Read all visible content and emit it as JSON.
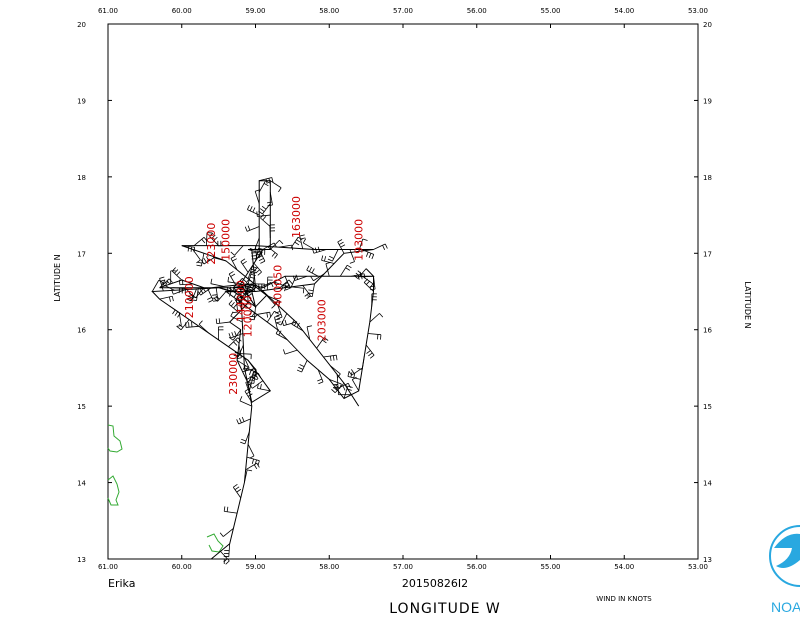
{
  "map": {
    "lon_range": [
      61.0,
      53.0
    ],
    "lat_range": [
      13,
      20
    ],
    "lon_ticks": [
      "61.00",
      "60.00",
      "59.00",
      "58.00",
      "57.00",
      "56.00",
      "55.00",
      "54.00",
      "53.00"
    ],
    "lat_ticks": [
      "20",
      "19",
      "18",
      "17",
      "16",
      "15",
      "14",
      "13"
    ],
    "storm_name": "Erika",
    "datetime": "20150826I2",
    "xlabel": "LONGITUDE   W",
    "ylabel_left": "LATITUDE   N",
    "ylabel_right": "LATITUDE   N",
    "wind_units": "WIND IN KNOTS",
    "logo_text": "NOAA",
    "colors": {
      "frame": "#000000",
      "track": "#000000",
      "labels": "#cc0000",
      "coast": "#33aa33",
      "logo": "#29a8e0"
    }
  },
  "flight_track": [
    [
      59.6,
      13.0
    ],
    [
      59.35,
      13.2
    ],
    [
      59.25,
      13.6
    ],
    [
      59.15,
      14.0
    ],
    [
      59.1,
      14.5
    ],
    [
      59.05,
      15.0
    ],
    [
      59.1,
      15.3
    ],
    [
      59.25,
      15.6
    ],
    [
      59.2,
      16.0
    ],
    [
      59.35,
      16.1
    ],
    [
      59.1,
      16.35
    ],
    [
      59.3,
      16.55
    ],
    [
      59.05,
      16.6
    ],
    [
      58.85,
      16.45
    ],
    [
      59.0,
      16.3
    ],
    [
      59.2,
      16.6
    ],
    [
      58.9,
      17.05
    ],
    [
      59.1,
      17.05
    ],
    [
      58.95,
      17.05
    ],
    [
      58.95,
      17.95
    ],
    [
      58.8,
      17.95
    ],
    [
      58.8,
      17.05
    ],
    [
      59.05,
      17.05
    ],
    [
      59.0,
      16.55
    ],
    [
      59.05,
      16.5
    ],
    [
      59.0,
      16.3
    ],
    [
      59.3,
      16.5
    ],
    [
      59.5,
      16.55
    ],
    [
      60.4,
      16.5
    ],
    [
      60.3,
      16.4
    ],
    [
      59.1,
      15.6
    ],
    [
      58.8,
      15.2
    ],
    [
      59.05,
      15.05
    ],
    [
      59.15,
      15.5
    ],
    [
      59.2,
      16.55
    ],
    [
      59.7,
      16.55
    ],
    [
      60.0,
      16.65
    ],
    [
      60.3,
      16.55
    ],
    [
      59.6,
      16.55
    ],
    [
      59.1,
      16.6
    ],
    [
      58.9,
      16.55
    ],
    [
      58.6,
      16.7
    ],
    [
      57.4,
      16.7
    ],
    [
      57.5,
      16.8
    ],
    [
      57.4,
      16.7
    ],
    [
      57.4,
      16.5
    ],
    [
      57.45,
      16.1
    ],
    [
      57.5,
      15.8
    ],
    [
      57.6,
      15.2
    ],
    [
      57.8,
      15.1
    ],
    [
      58.0,
      15.35
    ],
    [
      58.3,
      15.6
    ],
    [
      58.7,
      16.0
    ],
    [
      59.4,
      16.5
    ],
    [
      59.0,
      16.5
    ],
    [
      58.2,
      16.6
    ],
    [
      57.8,
      17.0
    ],
    [
      57.4,
      17.05
    ],
    [
      58.2,
      17.05
    ],
    [
      59.0,
      17.1
    ],
    [
      60.0,
      17.1
    ],
    [
      59.4,
      16.9
    ],
    [
      58.95,
      16.55
    ],
    [
      58.45,
      16.1
    ],
    [
      57.8,
      15.3
    ],
    [
      57.6,
      15.0
    ]
  ],
  "observation_labels": [
    {
      "text": "120000",
      "lon": 59.05,
      "lat": 15.9
    },
    {
      "text": "144000",
      "lon": 59.15,
      "lat": 16.1
    },
    {
      "text": "150000",
      "lon": 59.35,
      "lat": 16.9
    },
    {
      "text": "163000",
      "lon": 58.4,
      "lat": 17.2
    },
    {
      "text": "193000",
      "lon": 57.55,
      "lat": 16.9
    },
    {
      "text": "203000",
      "lon": 58.05,
      "lat": 15.85
    },
    {
      "text": "210000",
      "lon": 59.85,
      "lat": 16.15
    },
    {
      "text": "223000",
      "lon": 59.55,
      "lat": 16.85
    },
    {
      "text": "230000",
      "lon": 59.25,
      "lat": 15.15
    },
    {
      "text": "400050",
      "lon": 58.65,
      "lat": 16.3
    }
  ]
}
